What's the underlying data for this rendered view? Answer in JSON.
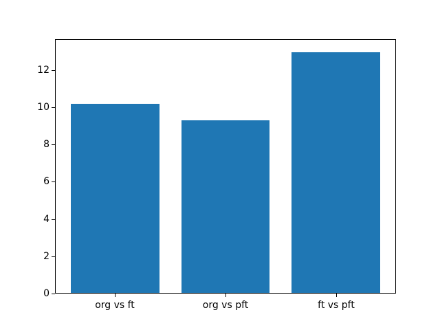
{
  "chart_data": {
    "type": "bar",
    "title": "",
    "xlabel": "",
    "ylabel": "",
    "categories": [
      "org vs ft",
      "org vs pft",
      "ft vs pft"
    ],
    "values": [
      10.2,
      9.3,
      13.0
    ],
    "bar_color": "#1f77b4",
    "bar_width": 0.8,
    "yticks": [
      0,
      2,
      4,
      6,
      8,
      10,
      12
    ],
    "ylim": [
      0,
      13.65
    ],
    "xlim": [
      -0.54,
      2.54
    ],
    "grid": false,
    "legend_position": "none",
    "background_color": "#ffffff",
    "spine_color": "#000000"
  }
}
